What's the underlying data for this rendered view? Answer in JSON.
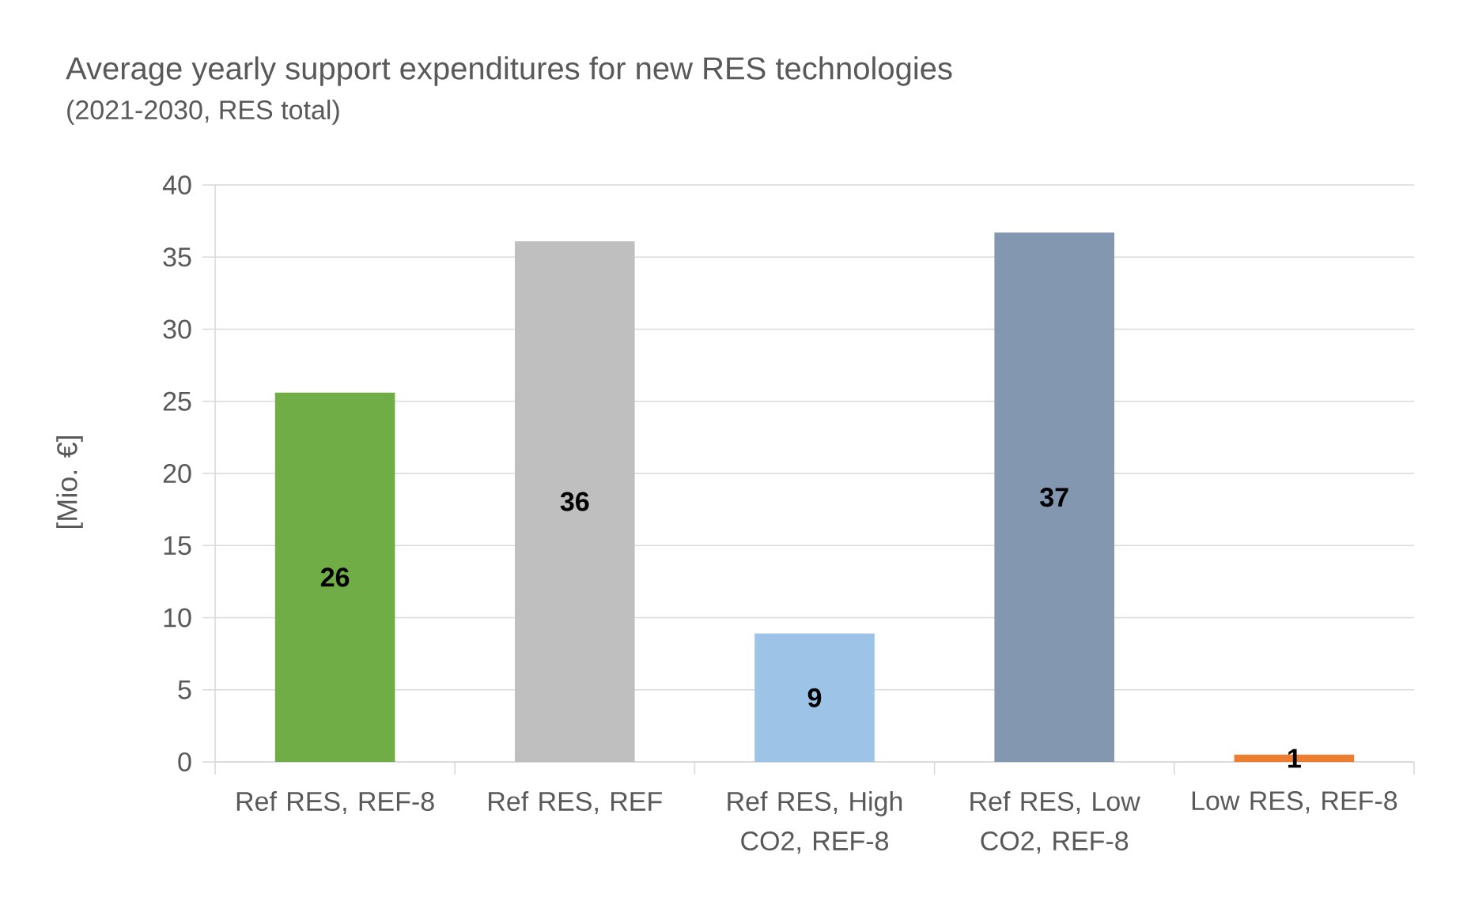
{
  "chart_data": {
    "type": "bar",
    "title": "Average yearly support expenditures for new RES technologies",
    "subtitle": "(2021-2030, RES total)",
    "ylabel": "[Mio. €]",
    "categories": [
      "Ref RES, REF-8",
      "Ref RES, REF",
      "Ref RES, High CO2, REF-8",
      "Ref RES, Low CO2, REF-8",
      "Low RES, REF-8"
    ],
    "values": [
      25.6,
      36.1,
      8.9,
      36.7,
      0.5
    ],
    "colors": [
      "#70ad47",
      "#bfbfbf",
      "#9dc3e6",
      "#8497b0",
      "#ed7d31"
    ],
    "value_labels": [
      "26",
      "36",
      "9",
      "37",
      "1"
    ],
    "ylim": [
      0,
      40
    ],
    "yticks": [
      0,
      5,
      10,
      15,
      20,
      25,
      30,
      35,
      40
    ],
    "grid": "y"
  }
}
